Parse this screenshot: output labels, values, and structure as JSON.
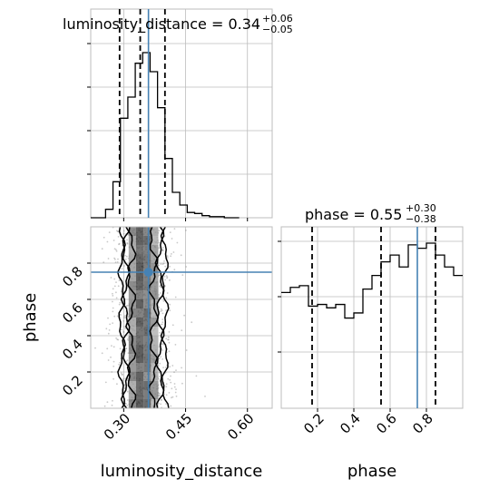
{
  "chart_data": {
    "type": "corner",
    "truth_color": "#4682b4",
    "luminosity_distance": {
      "label": "luminosity_distance",
      "title_name": "luminosity_distance",
      "title_value": "0.34",
      "title_plus": "+0.06",
      "title_minus": "−0.05",
      "range": [
        0.22,
        0.66
      ],
      "ticks": [
        0.3,
        0.45,
        0.6
      ],
      "tick_labels": [
        "0.30",
        "0.45",
        "0.60"
      ],
      "quantiles": [
        0.29,
        0.34,
        0.4
      ],
      "truth": 0.36,
      "hist_edges": [
        0.22,
        0.238,
        0.256,
        0.274,
        0.292,
        0.31,
        0.328,
        0.346,
        0.364,
        0.382,
        0.4,
        0.418,
        0.436,
        0.454,
        0.472,
        0.49,
        0.508,
        0.526,
        0.544,
        0.562,
        0.58
      ],
      "hist_counts": [
        0.0,
        0.0,
        0.04,
        0.17,
        0.47,
        0.57,
        0.73,
        0.78,
        0.69,
        0.52,
        0.28,
        0.12,
        0.06,
        0.025,
        0.02,
        0.01,
        0.005,
        0.005,
        0.0,
        0.0
      ]
    },
    "phase": {
      "label": "phase",
      "title_name": "phase",
      "title_value": "0.55",
      "title_plus": "+0.30",
      "title_minus": "−0.38",
      "range": [
        0.0,
        1.0
      ],
      "ticks": [
        0.2,
        0.4,
        0.6,
        0.8
      ],
      "tick_labels": [
        "0.2",
        "0.4",
        "0.6",
        "0.8"
      ],
      "quantiles": [
        0.17,
        0.55,
        0.85
      ],
      "truth": 0.75,
      "hist_edges": [
        0.0,
        0.05,
        0.1,
        0.15,
        0.2,
        0.25,
        0.3,
        0.35,
        0.4,
        0.45,
        0.5,
        0.55,
        0.6,
        0.65,
        0.7,
        0.75,
        0.8,
        0.85,
        0.9,
        0.95,
        1.0
      ],
      "hist_counts": [
        0.68,
        0.71,
        0.72,
        0.6,
        0.61,
        0.59,
        0.61,
        0.53,
        0.56,
        0.7,
        0.78,
        0.86,
        0.9,
        0.83,
        0.96,
        0.94,
        0.97,
        0.9,
        0.83,
        0.78
      ]
    }
  }
}
